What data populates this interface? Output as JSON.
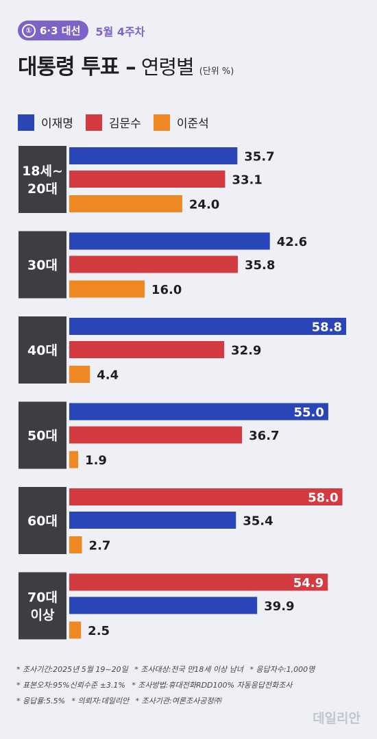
{
  "header": {
    "tag_icon": "①",
    "tag_label": "6·3 대선",
    "week": "5월 4주차",
    "title": "대통령 투표 –",
    "subtitle": "연령별",
    "unit": "(단위 %)"
  },
  "legend": [
    {
      "name": "이재명",
      "color": "#2a45b8"
    },
    {
      "name": "김문수",
      "color": "#d33b41"
    },
    {
      "name": "이준석",
      "color": "#ef8722"
    }
  ],
  "chart_data": {
    "type": "bar",
    "orientation": "horizontal",
    "title": "대통령 투표 – 연령별",
    "unit": "(단위 %)",
    "xlim": [
      0,
      62
    ],
    "series": [
      {
        "name": "이재명",
        "color": "#2a45b8"
      },
      {
        "name": "김문수",
        "color": "#d33b41"
      },
      {
        "name": "이준석",
        "color": "#ef8722"
      }
    ],
    "groups": [
      {
        "label": [
          "18세~",
          "20대"
        ],
        "bars": [
          {
            "series": "이재명",
            "value": 35.7,
            "label": "35.7"
          },
          {
            "series": "김문수",
            "value": 33.1,
            "label": "33.1"
          },
          {
            "series": "이준석",
            "value": 24.0,
            "label": "24.0"
          }
        ]
      },
      {
        "label": [
          "30대"
        ],
        "bars": [
          {
            "series": "이재명",
            "value": 42.6,
            "label": "42.6"
          },
          {
            "series": "김문수",
            "value": 35.8,
            "label": "35.8"
          },
          {
            "series": "이준석",
            "value": 16.0,
            "label": "16.0"
          }
        ]
      },
      {
        "label": [
          "40대"
        ],
        "bars": [
          {
            "series": "이재명",
            "value": 58.8,
            "label": "58.8"
          },
          {
            "series": "김문수",
            "value": 32.9,
            "label": "32.9"
          },
          {
            "series": "이준석",
            "value": 4.4,
            "label": "4.4"
          }
        ]
      },
      {
        "label": [
          "50대"
        ],
        "bars": [
          {
            "series": "이재명",
            "value": 55.0,
            "label": "55.0"
          },
          {
            "series": "김문수",
            "value": 36.7,
            "label": "36.7"
          },
          {
            "series": "이준석",
            "value": 1.9,
            "label": "1.9"
          }
        ]
      },
      {
        "label": [
          "60대"
        ],
        "bars": [
          {
            "series": "김문수",
            "value": 58.0,
            "label": "58.0"
          },
          {
            "series": "이재명",
            "value": 35.4,
            "label": "35.4"
          },
          {
            "series": "이준석",
            "value": 2.7,
            "label": "2.7"
          }
        ]
      },
      {
        "label": [
          "70대",
          "이상"
        ],
        "bars": [
          {
            "series": "김문수",
            "value": 54.9,
            "label": "54.9"
          },
          {
            "series": "이재명",
            "value": 39.9,
            "label": "39.9"
          },
          {
            "series": "이준석",
            "value": 2.5,
            "label": "2.5"
          }
        ]
      }
    ]
  },
  "notes": [
    "* 조사기간:2025년 5월 19~20일",
    "* 조사대상:전국 만18세 이상 남녀",
    "* 응답자수:1,000명",
    "* 표본오차:95%신뢰수준 ±3.1%",
    "* 조사방법:휴대전화RDD100% 자동응답전화조사",
    "* 응답률:5.5%",
    "* 의뢰자:데일리안",
    "* 조사기관:여론조사공정㈜"
  ],
  "watermark": "데일리안"
}
